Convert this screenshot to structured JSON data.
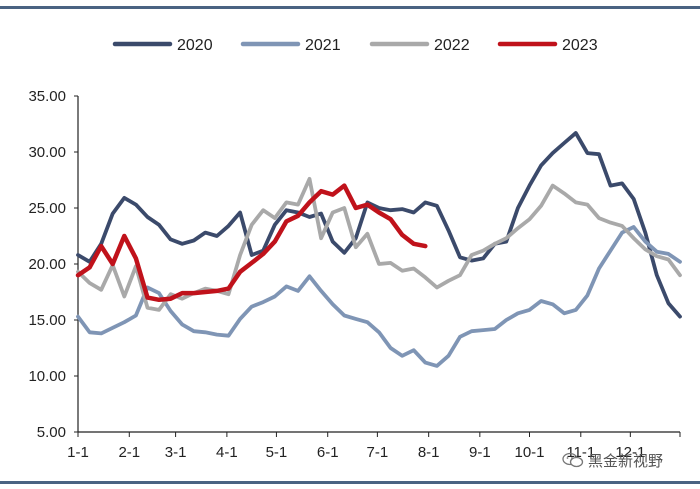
{
  "chart_data": {
    "type": "line",
    "title": "",
    "xlabel": "",
    "ylabel": "",
    "ylim": [
      5,
      35
    ],
    "yticks": [
      "5.00",
      "10.00",
      "15.00",
      "20.00",
      "25.00",
      "30.00",
      "35.00"
    ],
    "xtick_labels": [
      "1-1",
      "2-1",
      "3-1",
      "4-1",
      "5-1",
      "6-1",
      "7-1",
      "8-1",
      "9-1",
      "10-1",
      "11-1",
      "12-1"
    ],
    "x_unit": "week of year (0 = Jan 1, 52 = Dec 31)",
    "grid": false,
    "legend_position": "top",
    "series": [
      {
        "name": "2020",
        "color": "#3b4a6b",
        "x": [
          0,
          1,
          2,
          3,
          4,
          5,
          6,
          7,
          8,
          9,
          10,
          11,
          12,
          13,
          14,
          15,
          16,
          17,
          18,
          19,
          20,
          21,
          22,
          23,
          24,
          25,
          26,
          27,
          28,
          29,
          30,
          31,
          32,
          33,
          34,
          35,
          36,
          37,
          38,
          39,
          40,
          41,
          42,
          43,
          44,
          45,
          46,
          47,
          48,
          49,
          50,
          51,
          52
        ],
        "values": [
          20.8,
          20.2,
          21.8,
          24.5,
          25.9,
          25.3,
          24.2,
          23.5,
          22.2,
          21.8,
          22.1,
          22.8,
          22.5,
          23.4,
          24.6,
          20.8,
          21.2,
          23.5,
          24.8,
          24.6,
          24.2,
          24.5,
          22.0,
          21.0,
          22.3,
          25.5,
          25.0,
          24.8,
          24.9,
          24.6,
          25.5,
          25.2,
          23.0,
          20.6,
          20.3,
          20.5,
          21.8,
          22.0,
          25.0,
          27.0,
          28.8,
          29.9,
          30.8,
          31.7,
          29.9,
          29.8,
          27.0,
          27.2,
          25.8,
          22.8,
          19.0,
          16.5,
          15.3
        ]
      },
      {
        "name": "2021",
        "color": "#7f95b5",
        "x": [
          0,
          1,
          2,
          3,
          4,
          5,
          6,
          7,
          8,
          9,
          10,
          11,
          12,
          13,
          14,
          15,
          16,
          17,
          18,
          19,
          20,
          21,
          22,
          23,
          24,
          25,
          26,
          27,
          28,
          29,
          30,
          31,
          32,
          33,
          34,
          35,
          36,
          37,
          38,
          39,
          40,
          41,
          42,
          43,
          44,
          45,
          46,
          47,
          48,
          49,
          50,
          51,
          52
        ],
        "values": [
          15.3,
          13.9,
          13.8,
          14.3,
          14.8,
          15.4,
          17.9,
          17.4,
          15.8,
          14.6,
          14.0,
          13.9,
          13.7,
          13.6,
          15.1,
          16.2,
          16.6,
          17.1,
          18.0,
          17.6,
          18.9,
          17.6,
          16.4,
          15.4,
          15.1,
          14.8,
          13.9,
          12.5,
          11.8,
          12.3,
          11.2,
          10.9,
          11.8,
          13.5,
          14.0,
          14.1,
          14.2,
          15.0,
          15.6,
          15.9,
          16.7,
          16.4,
          15.6,
          15.9,
          17.2,
          19.6,
          21.2,
          22.8,
          23.3,
          22.0,
          21.1,
          20.9,
          20.2
        ]
      },
      {
        "name": "2022",
        "color": "#a9a9a9",
        "x": [
          0,
          1,
          2,
          3,
          4,
          5,
          6,
          7,
          8,
          9,
          10,
          11,
          12,
          13,
          14,
          15,
          16,
          17,
          18,
          19,
          20,
          21,
          22,
          23,
          24,
          25,
          26,
          27,
          28,
          29,
          30,
          31,
          32,
          33,
          34,
          35,
          36,
          37,
          38,
          39,
          40,
          41,
          42,
          43,
          44,
          45,
          46,
          47,
          48,
          49,
          50,
          51,
          52
        ],
        "values": [
          19.3,
          18.3,
          17.7,
          19.9,
          17.1,
          19.8,
          16.1,
          15.9,
          17.3,
          16.9,
          17.4,
          17.8,
          17.6,
          17.3,
          20.8,
          23.5,
          24.8,
          24.1,
          25.5,
          25.3,
          27.6,
          22.3,
          24.6,
          25.0,
          21.5,
          22.7,
          20.0,
          20.1,
          19.4,
          19.6,
          18.8,
          17.9,
          18.5,
          19.0,
          20.8,
          21.2,
          21.8,
          22.3,
          23.2,
          24.0,
          25.2,
          27.0,
          26.3,
          25.5,
          25.3,
          24.1,
          23.7,
          23.4,
          22.3,
          21.3,
          20.7,
          20.4,
          19.0
        ]
      },
      {
        "name": "2023",
        "color": "#c0121b",
        "x": [
          0,
          1,
          2,
          3,
          4,
          5,
          6,
          7,
          8,
          9,
          10,
          11,
          12,
          13,
          14,
          15,
          16,
          17,
          18,
          19,
          20,
          21,
          22,
          23,
          24,
          25,
          26,
          27,
          28,
          29,
          30
        ],
        "values": [
          19.0,
          19.7,
          21.6,
          20.0,
          22.5,
          20.5,
          17.0,
          16.8,
          16.9,
          17.4,
          17.4,
          17.5,
          17.6,
          17.8,
          19.3,
          20.1,
          20.9,
          22.0,
          23.8,
          24.3,
          25.5,
          26.5,
          26.2,
          27.0,
          25.0,
          25.3,
          24.6,
          24.0,
          22.6,
          21.8,
          21.6
        ]
      }
    ]
  },
  "watermark": {
    "text": "黑金新视野"
  }
}
